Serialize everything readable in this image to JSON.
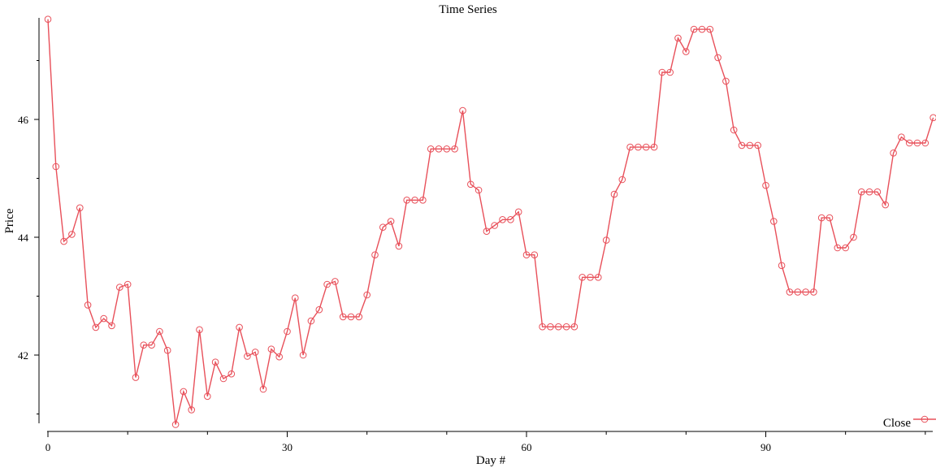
{
  "chart_data": {
    "type": "line",
    "title": "Time Series",
    "xlabel": "Day #",
    "ylabel": "Price",
    "xlim": [
      0,
      111
    ],
    "ylim": [
      40.8,
      47.7
    ],
    "xticks_major": [
      0,
      30,
      60,
      90
    ],
    "xticks_minor": [
      10,
      20,
      40,
      50,
      70,
      80,
      100,
      110
    ],
    "yticks_major": [
      42,
      44,
      46
    ],
    "yticks_minor": [
      41,
      43,
      45,
      47
    ],
    "grid": false,
    "legend": {
      "position": "bottom-right",
      "entries": [
        "Close"
      ]
    },
    "series": [
      {
        "name": "Close",
        "color": "#e8505a",
        "marker": "open-circle",
        "x": [
          0,
          1,
          2,
          3,
          4,
          5,
          6,
          7,
          8,
          9,
          10,
          11,
          12,
          13,
          14,
          15,
          16,
          17,
          18,
          19,
          20,
          21,
          22,
          23,
          24,
          25,
          26,
          27,
          28,
          29,
          30,
          31,
          32,
          33,
          34,
          35,
          36,
          37,
          38,
          39,
          40,
          41,
          42,
          43,
          44,
          45,
          46,
          47,
          48,
          49,
          50,
          51,
          52,
          53,
          54,
          55,
          56,
          57,
          58,
          59,
          60,
          61,
          62,
          63,
          64,
          65,
          66,
          67,
          68,
          69,
          70,
          71,
          72,
          73,
          74,
          75,
          76,
          77,
          78,
          79,
          80,
          81,
          82,
          83,
          84,
          85,
          86,
          87,
          88,
          89,
          90,
          91,
          92,
          93,
          94,
          95,
          96,
          97,
          98,
          99,
          100,
          101,
          102,
          103,
          104,
          105,
          106,
          107,
          108,
          109,
          110,
          111
        ],
        "values": [
          47.7,
          45.2,
          43.93,
          44.05,
          44.5,
          42.85,
          42.47,
          42.62,
          42.5,
          43.15,
          43.2,
          41.62,
          42.17,
          42.17,
          42.4,
          42.08,
          40.82,
          41.38,
          41.07,
          42.43,
          41.3,
          41.88,
          41.6,
          41.68,
          42.47,
          41.98,
          42.05,
          41.42,
          42.1,
          41.97,
          42.4,
          42.97,
          42.0,
          42.58,
          42.77,
          43.2,
          43.25,
          42.65,
          42.65,
          42.65,
          43.02,
          43.7,
          44.17,
          44.27,
          43.85,
          44.63,
          44.63,
          44.63,
          45.5,
          45.5,
          45.5,
          45.5,
          46.15,
          44.9,
          44.8,
          44.1,
          44.2,
          44.3,
          44.3,
          44.43,
          43.7,
          43.7,
          42.48,
          42.48,
          42.48,
          42.48,
          42.48,
          43.32,
          43.32,
          43.32,
          43.95,
          44.73,
          44.98,
          45.53,
          45.53,
          45.53,
          45.53,
          46.8,
          46.8,
          47.38,
          47.15,
          47.53,
          47.53,
          47.53,
          47.05,
          46.65,
          45.82,
          45.56,
          45.56,
          45.56,
          44.88,
          44.27,
          43.52,
          43.07,
          43.07,
          43.07,
          43.07,
          44.33,
          44.33,
          43.82,
          43.82,
          44.0,
          44.77,
          44.77,
          44.77,
          44.55,
          45.43,
          45.7,
          45.6,
          45.6,
          45.6,
          46.03
        ]
      }
    ]
  }
}
